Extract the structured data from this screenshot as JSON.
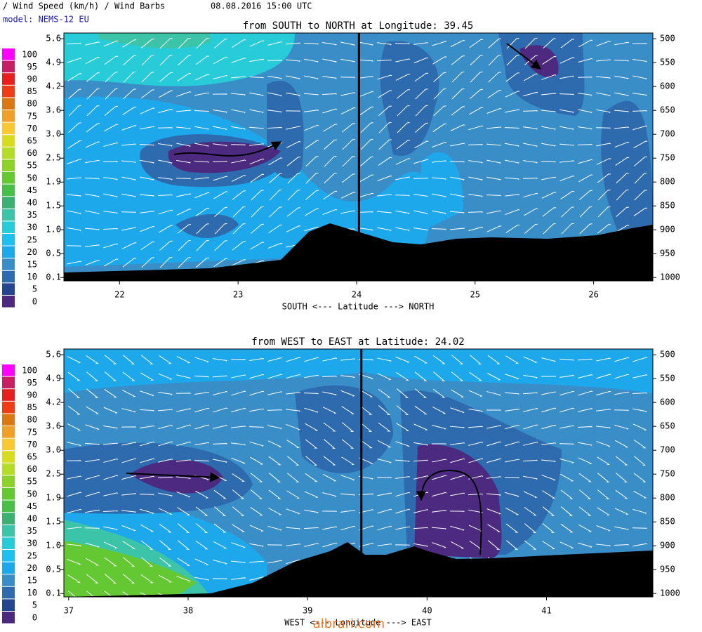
{
  "header": {
    "title": "/ Wind Speed (km/h) / Wind Barbs",
    "datetime": "08.08.2016   15:00 UTC",
    "model": "model: NEMS-12 EU"
  },
  "colorbar": {
    "levels": [
      0,
      5,
      10,
      15,
      20,
      25,
      30,
      35,
      40,
      45,
      50,
      55,
      60,
      65,
      70,
      75,
      80,
      85,
      90,
      95,
      100
    ],
    "colors": [
      "#4b2a80",
      "#23468f",
      "#2d6aae",
      "#3a8ec8",
      "#1ea8ec",
      "#1ec0f0",
      "#28ccd8",
      "#3cc4a8",
      "#3cb070",
      "#48c048",
      "#64c832",
      "#8cd228",
      "#b4dc28",
      "#d8dc1e",
      "#fac832",
      "#f0a028",
      "#dc7814",
      "#f03c14",
      "#e61e1e",
      "#c81e64",
      "#ff00ff"
    ]
  },
  "chart_data": [
    {
      "type": "cross-section",
      "title": "from SOUTH to NORTH at Longitude:  39.45",
      "xlim": [
        21.53,
        26.5
      ],
      "xticks": [
        22,
        23,
        24,
        25,
        26
      ],
      "xlabel": "SOUTH <---   Latitude   ---> NORTH",
      "ylim": [
        1007,
        488
      ],
      "yticks": [
        1000,
        950,
        900,
        850,
        800,
        750,
        700,
        650,
        600,
        550,
        500
      ],
      "height_labels": [
        "0.1",
        "0.5",
        "1.0",
        "1.5",
        "1.9",
        "2.5",
        "3.0",
        "3.6",
        "4.2",
        "4.9",
        "5.6"
      ],
      "crossline": 24.02
    },
    {
      "type": "cross-section",
      "title": "from WEST to EAST at Latitude:  24.02",
      "xlim": [
        36.96,
        41.89
      ],
      "xticks": [
        37,
        38,
        39,
        40,
        41
      ],
      "xlabel": "WEST <---   Longitude   ---> EAST",
      "ylim": [
        1007,
        488
      ],
      "yticks": [
        1000,
        950,
        900,
        850,
        800,
        750,
        700,
        650,
        600,
        550,
        500
      ],
      "height_labels": [
        "0.1",
        "0.5",
        "1.0",
        "1.5",
        "1.9",
        "2.5",
        "3.0",
        "3.6",
        "4.2",
        "4.9",
        "5.6"
      ],
      "crossline": 39.45
    }
  ],
  "watermark": "albrari.com"
}
